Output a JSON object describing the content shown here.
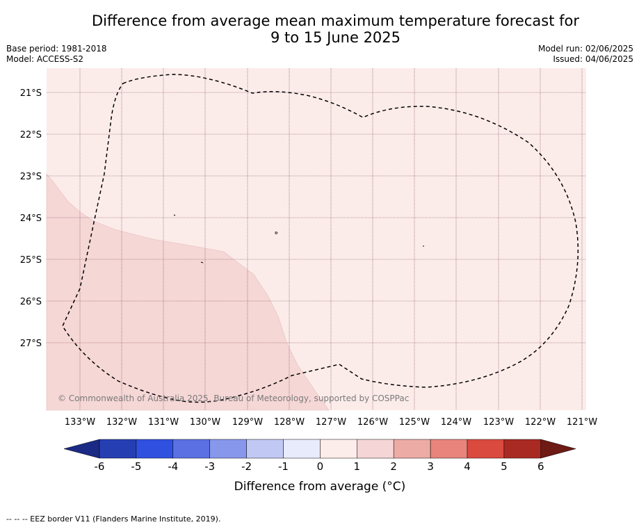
{
  "title_line1": "Difference from average mean maximum temperature forecast for",
  "title_line2": "9 to 15 June 2025",
  "base_period": "Base period: 1981-2018",
  "model": "Model: ACCESS-S2",
  "model_run": "Model run: 02/06/2025",
  "issued": "Issued: 04/06/2025",
  "copyright": "© Commonwealth of Australia 2025, Bureau of Meteorology, supported by COSPPac",
  "footnote": "--  --  -- EEZ border V11 (Flanders Marine Institute, 2019).",
  "lat_labels": [
    "21°S",
    "22°S",
    "23°S",
    "24°S",
    "25°S",
    "26°S",
    "27°S"
  ],
  "lon_labels": [
    "133°W",
    "132°W",
    "131°W",
    "130°W",
    "129°W",
    "128°W",
    "127°W",
    "126°W",
    "125°W",
    "124°W",
    "123°W",
    "122°W",
    "121°W"
  ],
  "colorbar": {
    "label": "Difference from average ($^\\circ$C)",
    "label_display": "Difference from average (°C)",
    "ticks": [
      "-6",
      "-5",
      "-4",
      "-3",
      "-2",
      "-1",
      "0",
      "1",
      "2",
      "3",
      "4",
      "5",
      "6"
    ],
    "colors": [
      "#1b2a85",
      "#253fb3",
      "#3050e0",
      "#5a70e3",
      "#8797ec",
      "#c1c8f3",
      "#e8ebfb",
      "#fcecea",
      "#f5d5d5",
      "#edaba6",
      "#e8847c",
      "#da4a3f",
      "#a92a22",
      "#6e1a15"
    ]
  },
  "fill_colors": {
    "zone_0_1": "#fbecea",
    "zone_1_2": "#f5d7d6",
    "eez_line": "#000000",
    "grid_line": "#7a3c52"
  }
}
